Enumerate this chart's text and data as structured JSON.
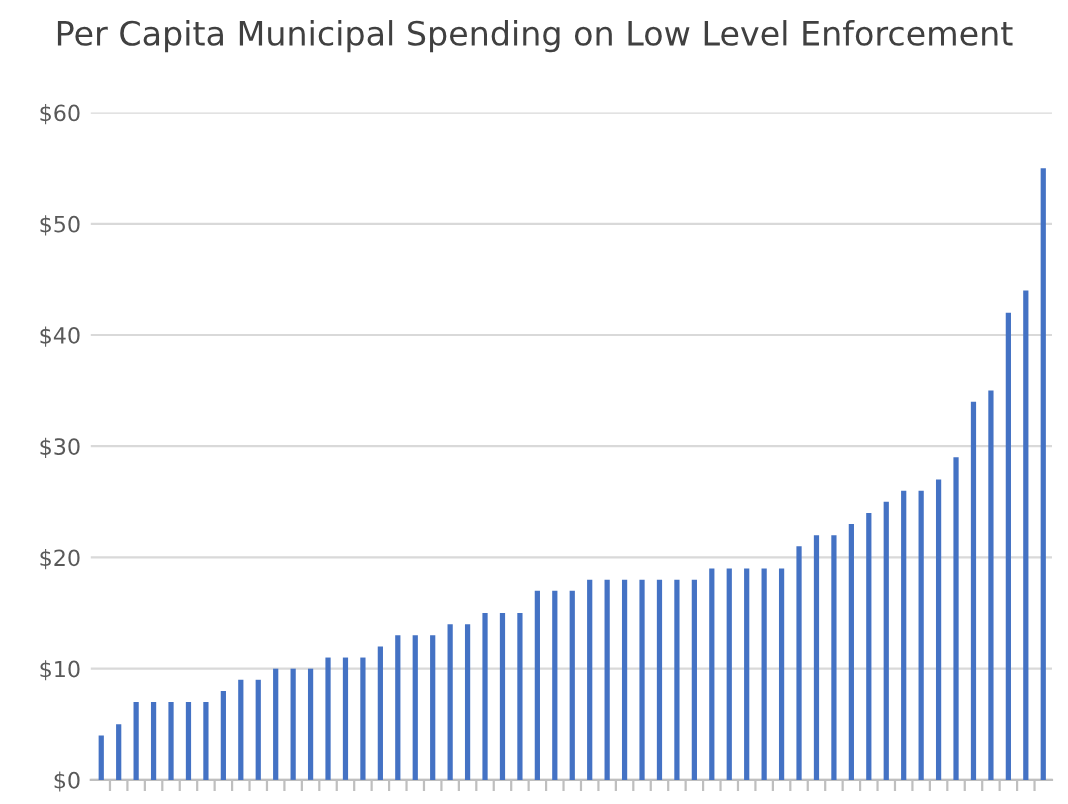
{
  "chart_data": {
    "type": "bar",
    "title": "Per Capita Municipal Spending on Low Level Enforcement",
    "categories": [
      null,
      null,
      null,
      null,
      null,
      null,
      null,
      null,
      null,
      null,
      null,
      null,
      null,
      null,
      null,
      null,
      null,
      null,
      null,
      null,
      null,
      null,
      null,
      null,
      null,
      null,
      null,
      null,
      null,
      null,
      null,
      null,
      null,
      null,
      null,
      null,
      null,
      null,
      null,
      null,
      null,
      null,
      null,
      null,
      null,
      null,
      null,
      null,
      null,
      null,
      null,
      null,
      null,
      null,
      null
    ],
    "values": [
      4,
      5,
      7,
      7,
      7,
      7,
      7,
      8,
      9,
      9,
      10,
      10,
      10,
      11,
      11,
      11,
      12,
      13,
      13,
      13,
      14,
      14,
      15,
      15,
      15,
      17,
      17,
      17,
      18,
      18,
      18,
      18,
      18,
      18,
      18,
      19,
      19,
      19,
      19,
      19,
      21,
      22,
      22,
      23,
      24,
      25,
      26,
      26,
      27,
      29,
      34,
      35,
      42,
      44,
      55
    ],
    "color": "#4472c4",
    "ylim": [
      0,
      60
    ],
    "yticks": [
      {
        "value": 0,
        "label": "$0"
      },
      {
        "value": 10,
        "label": "$10"
      },
      {
        "value": 20,
        "label": "$20"
      },
      {
        "value": 30,
        "label": "$30"
      },
      {
        "value": 40,
        "label": "$40"
      },
      {
        "value": 50,
        "label": "$50"
      },
      {
        "value": 60,
        "label": "$60"
      }
    ],
    "grid": "y"
  }
}
